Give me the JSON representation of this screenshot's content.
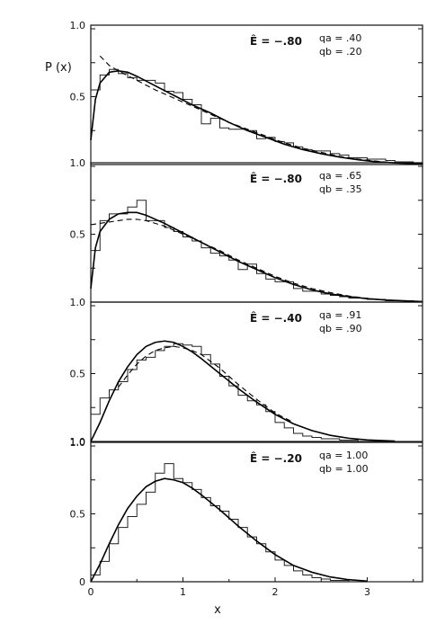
{
  "chart_data": {
    "type": "line",
    "ylabel": "P (x)",
    "xlabel": "x",
    "xlim": [
      0,
      3.6
    ],
    "ylim": [
      0,
      1.0
    ],
    "x_ticks": [
      "0",
      "1",
      "2",
      "3"
    ],
    "panels": [
      {
        "energy_label": "Ê = −.80",
        "qa_label": "qa = .40",
        "qb_label": "qb = .20",
        "y_ticks": [
          "1.0",
          "0.5",
          "1.0"
        ],
        "histogram": {
          "bin_width": 0.1,
          "values": [
            0.55,
            0.66,
            0.7,
            0.67,
            0.64,
            0.62,
            0.62,
            0.6,
            0.54,
            0.53,
            0.48,
            0.44,
            0.3,
            0.34,
            0.27,
            0.26,
            0.26,
            0.25,
            0.19,
            0.2,
            0.17,
            0.16,
            0.13,
            0.11,
            0.1,
            0.1,
            0.08,
            0.07,
            0.05,
            0.05,
            0.04,
            0.04,
            0.03,
            0.02,
            0.02,
            0.01
          ]
        },
        "solid_curve": {
          "x": [
            0,
            0.05,
            0.1,
            0.2,
            0.3,
            0.4,
            0.5,
            0.7,
            0.9,
            1.1,
            1.3,
            1.5,
            1.7,
            1.9,
            2.1,
            2.3,
            2.5,
            2.7,
            2.9,
            3.1,
            3.3,
            3.6
          ],
          "y": [
            0.18,
            0.48,
            0.6,
            0.68,
            0.69,
            0.68,
            0.65,
            0.58,
            0.51,
            0.44,
            0.38,
            0.31,
            0.25,
            0.2,
            0.15,
            0.11,
            0.08,
            0.055,
            0.035,
            0.02,
            0.012,
            0.004
          ]
        },
        "dashed_curve": {
          "x": [
            0.1,
            0.2,
            0.3,
            0.5,
            0.7,
            0.9,
            1.1,
            1.3,
            1.5,
            1.7,
            1.9,
            2.1,
            2.3,
            2.5,
            2.7,
            2.9,
            3.1,
            3.3
          ],
          "y": [
            0.8,
            0.73,
            0.69,
            0.62,
            0.55,
            0.49,
            0.43,
            0.37,
            0.31,
            0.26,
            0.21,
            0.16,
            0.12,
            0.09,
            0.06,
            0.04,
            0.025,
            0.013
          ]
        }
      },
      {
        "energy_label": "Ê = −.80",
        "qa_label": "qa = .65",
        "qb_label": "qb = .35",
        "y_ticks": [
          "1.0",
          "0.5",
          "1.0"
        ],
        "histogram": {
          "bin_width": 0.1,
          "values": [
            0.38,
            0.6,
            0.65,
            0.65,
            0.7,
            0.75,
            0.6,
            0.6,
            0.55,
            0.52,
            0.48,
            0.45,
            0.4,
            0.36,
            0.34,
            0.31,
            0.24,
            0.28,
            0.21,
            0.17,
            0.15,
            0.15,
            0.1,
            0.08,
            0.08,
            0.06,
            0.05,
            0.04,
            0.03,
            0.03,
            0.02,
            0.02,
            0.01,
            0.01,
            0.01,
            0.0
          ]
        },
        "solid_curve": {
          "x": [
            0,
            0.05,
            0.1,
            0.2,
            0.3,
            0.4,
            0.5,
            0.6,
            0.8,
            1.0,
            1.2,
            1.4,
            1.6,
            1.8,
            2.0,
            2.2,
            2.4,
            2.6,
            2.8,
            3.0,
            3.2,
            3.6
          ],
          "y": [
            0.1,
            0.4,
            0.52,
            0.61,
            0.65,
            0.66,
            0.66,
            0.64,
            0.58,
            0.51,
            0.44,
            0.37,
            0.3,
            0.24,
            0.18,
            0.13,
            0.09,
            0.06,
            0.04,
            0.025,
            0.015,
            0.004
          ]
        },
        "dashed_curve": {
          "x": [
            0,
            0.2,
            0.4,
            0.5,
            0.6,
            0.8,
            1.0,
            1.2,
            1.4,
            1.6,
            1.8,
            2.0,
            2.2,
            2.4,
            2.6,
            2.8,
            3.0,
            3.2,
            3.5
          ],
          "y": [
            0.57,
            0.59,
            0.61,
            0.61,
            0.6,
            0.56,
            0.5,
            0.44,
            0.38,
            0.31,
            0.25,
            0.19,
            0.14,
            0.1,
            0.07,
            0.045,
            0.028,
            0.016,
            0.006
          ]
        }
      },
      {
        "energy_label": "Ê = −.40",
        "qa_label": "qa = .91",
        "qb_label": "qb = .90",
        "y_ticks": [
          "1.0",
          "0.5",
          "1.0"
        ],
        "histogram": {
          "bin_width": 0.1,
          "values": [
            0.2,
            0.32,
            0.38,
            0.44,
            0.53,
            0.6,
            0.62,
            0.67,
            0.7,
            0.72,
            0.71,
            0.7,
            0.64,
            0.57,
            0.48,
            0.41,
            0.34,
            0.3,
            0.27,
            0.22,
            0.14,
            0.1,
            0.06,
            0.04,
            0.03,
            0.02,
            0.02,
            0.01,
            0.01,
            0.0,
            0.0,
            0.0,
            0.0,
            0.0,
            0.0,
            0.0
          ]
        },
        "solid_curve": {
          "x": [
            0,
            0.1,
            0.2,
            0.3,
            0.4,
            0.5,
            0.6,
            0.7,
            0.8,
            0.9,
            1.0,
            1.1,
            1.2,
            1.4,
            1.6,
            1.8,
            2.0,
            2.2,
            2.4,
            2.6,
            2.8,
            3.0,
            3.3
          ],
          "y": [
            0.0,
            0.14,
            0.3,
            0.44,
            0.55,
            0.64,
            0.7,
            0.73,
            0.74,
            0.73,
            0.7,
            0.66,
            0.61,
            0.5,
            0.39,
            0.29,
            0.2,
            0.13,
            0.08,
            0.045,
            0.024,
            0.011,
            0.003
          ]
        },
        "dashed_curve": {
          "x": [
            0.3,
            0.4,
            0.5,
            0.6,
            0.7,
            0.8,
            0.9,
            1.0,
            1.1,
            1.2,
            1.4,
            1.6,
            1.8,
            2.0,
            2.2
          ],
          "y": [
            0.4,
            0.49,
            0.57,
            0.63,
            0.67,
            0.69,
            0.7,
            0.69,
            0.67,
            0.64,
            0.54,
            0.42,
            0.31,
            0.21,
            0.14
          ]
        }
      },
      {
        "energy_label": "Ê = −.20",
        "qa_label": "qa = 1.00",
        "qb_label": "qb = 1.00",
        "y_ticks": [
          "0",
          "0.5",
          "1.0"
        ],
        "histogram": {
          "bin_width": 0.1,
          "values": [
            0.05,
            0.15,
            0.28,
            0.4,
            0.48,
            0.57,
            0.66,
            0.8,
            0.87,
            0.76,
            0.73,
            0.68,
            0.62,
            0.56,
            0.52,
            0.46,
            0.4,
            0.33,
            0.28,
            0.22,
            0.16,
            0.12,
            0.08,
            0.05,
            0.03,
            0.02,
            0.01,
            0.01,
            0.0,
            0.0,
            0.0,
            0.0,
            0.0,
            0.0,
            0.0,
            0.0
          ]
        },
        "solid_curve": {
          "x": [
            0,
            0.1,
            0.2,
            0.3,
            0.4,
            0.5,
            0.6,
            0.7,
            0.8,
            0.9,
            1.0,
            1.1,
            1.2,
            1.4,
            1.6,
            1.8,
            2.0,
            2.2,
            2.4,
            2.6,
            2.8,
            3.0
          ],
          "y": [
            0.0,
            0.13,
            0.28,
            0.42,
            0.54,
            0.63,
            0.7,
            0.74,
            0.76,
            0.75,
            0.73,
            0.69,
            0.64,
            0.53,
            0.41,
            0.3,
            0.2,
            0.12,
            0.07,
            0.035,
            0.015,
            0.005
          ]
        },
        "dashed_curve": {
          "x": [],
          "y": []
        }
      }
    ]
  }
}
